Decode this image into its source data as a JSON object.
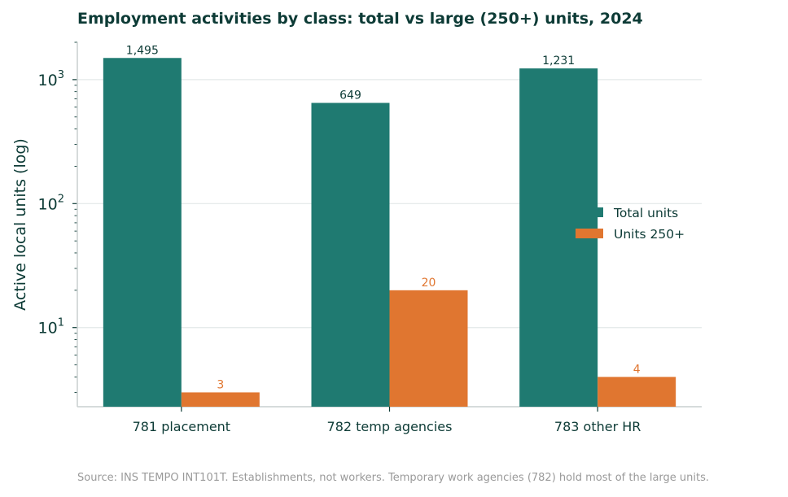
{
  "chart_data": {
    "type": "bar",
    "title": "Employment activities by class: total vs large (250+) units, 2024",
    "xlabel": "",
    "ylabel": "Active local units (log)",
    "yscale": "log",
    "ylim": [
      2.3,
      2000
    ],
    "yticks": [
      {
        "base": "10",
        "exp": "1"
      },
      {
        "base": "10",
        "exp": "2"
      },
      {
        "base": "10",
        "exp": "3"
      }
    ],
    "categories": [
      "781 placement",
      "782 temp agencies",
      "783 other HR"
    ],
    "series": [
      {
        "name": "Total units",
        "color": "#1f7a71",
        "values": [
          1495,
          649,
          1231
        ],
        "labels": [
          "1,495",
          "649",
          "1,231"
        ]
      },
      {
        "name": "Units 250+",
        "color": "#e07630",
        "values": [
          3,
          20,
          4
        ],
        "labels": [
          "3",
          "20",
          "4"
        ]
      }
    ],
    "grid": "horizontal",
    "legend": "center-right"
  },
  "source_note": "Source: INS TEMPO INT101T. Establishments, not workers. Temporary work agencies (782) hold most of the large units."
}
